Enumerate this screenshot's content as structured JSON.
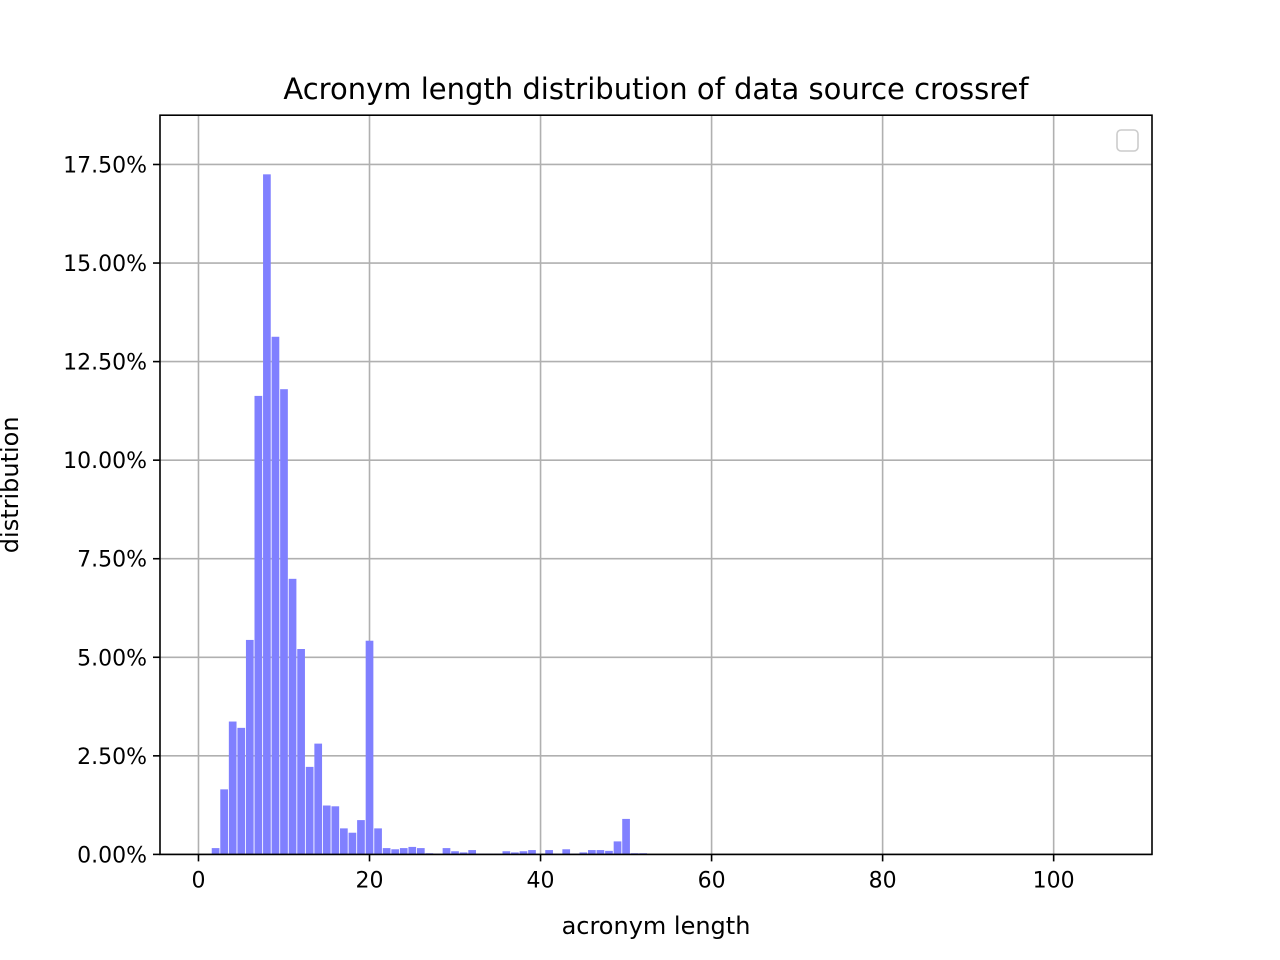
{
  "chart_data": {
    "type": "bar",
    "title": "Acronym length distribution of data source crossref",
    "xlabel": "acronym length",
    "ylabel": "distribution",
    "xlim": [
      -4.5,
      111.5
    ],
    "ylim": [
      0,
      0.1875
    ],
    "xticks": [
      0,
      20,
      40,
      60,
      80,
      100
    ],
    "xtick_labels": [
      "0",
      "20",
      "40",
      "60",
      "80",
      "100"
    ],
    "yticks": [
      0,
      0.025,
      0.05,
      0.075,
      0.1,
      0.125,
      0.15,
      0.175
    ],
    "ytick_labels": [
      "0.00%",
      "2.50%",
      "5.00%",
      "7.50%",
      "10.00%",
      "12.50%",
      "15.00%",
      "17.50%"
    ],
    "grid": true,
    "legend": "upper-right (empty)",
    "bar_color": "#8080ff",
    "bar_width": 0.9,
    "x": [
      2,
      3,
      4,
      5,
      6,
      7,
      8,
      9,
      10,
      11,
      12,
      13,
      14,
      15,
      16,
      17,
      18,
      19,
      20,
      21,
      22,
      23,
      24,
      25,
      26,
      27,
      28,
      29,
      30,
      31,
      32,
      33,
      34,
      35,
      36,
      37,
      38,
      39,
      40,
      41,
      42,
      43,
      44,
      45,
      46,
      47,
      48,
      49,
      50,
      51,
      52,
      53
    ],
    "values": [
      0.0016,
      0.0165,
      0.0337,
      0.0321,
      0.0544,
      0.1163,
      0.1725,
      0.1313,
      0.118,
      0.0699,
      0.0521,
      0.0222,
      0.0281,
      0.0124,
      0.0122,
      0.0066,
      0.0055,
      0.0087,
      0.0542,
      0.0066,
      0.0016,
      0.0013,
      0.0016,
      0.0019,
      0.0016,
      0.0003,
      0.0002,
      0.0016,
      0.0008,
      0.0005,
      0.0011,
      0.0002,
      0.0002,
      0.0002,
      0.0008,
      0.0005,
      0.0008,
      0.0011,
      0.0002,
      0.0011,
      0.0002,
      0.0013,
      0.0002,
      0.0005,
      0.0011,
      0.0011,
      0.0009,
      0.0033,
      0.009,
      0.0003,
      0.0003,
      0.0001
    ]
  }
}
